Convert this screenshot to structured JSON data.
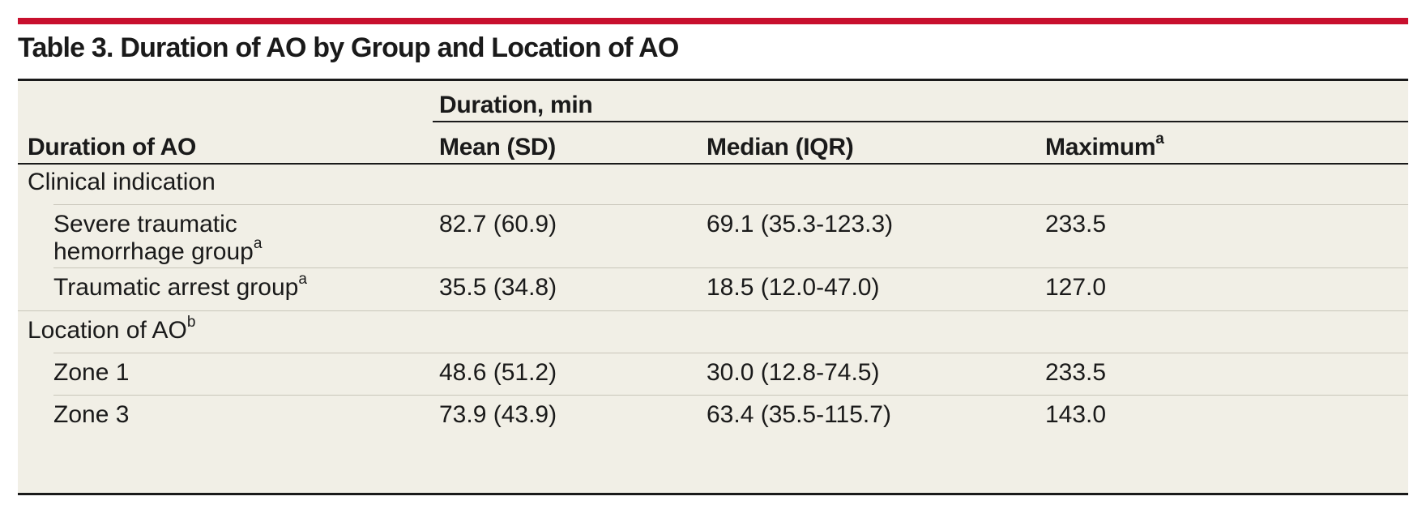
{
  "title": "Table 3. Duration of AO by Group and Location of AO",
  "header": {
    "row_label": "Duration of AO",
    "group_label": "Duration, min",
    "columns": [
      {
        "label": "Mean (SD)",
        "sup": ""
      },
      {
        "label": "Median (IQR)",
        "sup": ""
      },
      {
        "label": "Maximum",
        "sup": "a"
      }
    ]
  },
  "sections": [
    {
      "label": "Clinical indication",
      "sup": "",
      "rows": [
        {
          "label_line1": "Severe traumatic",
          "label_line2": "hemorrhage group",
          "sup": "a",
          "mean_sd": "82.7 (60.9)",
          "median_iqr": "69.1 (35.3-123.3)",
          "maximum": "233.5"
        },
        {
          "label_line1": "Traumatic arrest group",
          "label_line2": "",
          "sup": "a",
          "mean_sd": "35.5 (34.8)",
          "median_iqr": "18.5 (12.0-47.0)",
          "maximum": "127.0"
        }
      ]
    },
    {
      "label": "Location of AO",
      "sup": "b",
      "rows": [
        {
          "label_line1": "Zone 1",
          "label_line2": "",
          "sup": "",
          "mean_sd": "48.6 (51.2)",
          "median_iqr": "30.0 (12.8-74.5)",
          "maximum": "233.5"
        },
        {
          "label_line1": "Zone 3",
          "label_line2": "",
          "sup": "",
          "mean_sd": "73.9 (43.9)",
          "median_iqr": "63.4 (35.5-115.7)",
          "maximum": "143.0"
        }
      ]
    }
  ],
  "colors": {
    "accent_rule": "#c8102e",
    "table_background": "#f1efe6",
    "rule": "#1a1a1a",
    "row_divider": "#c9c6ba"
  }
}
